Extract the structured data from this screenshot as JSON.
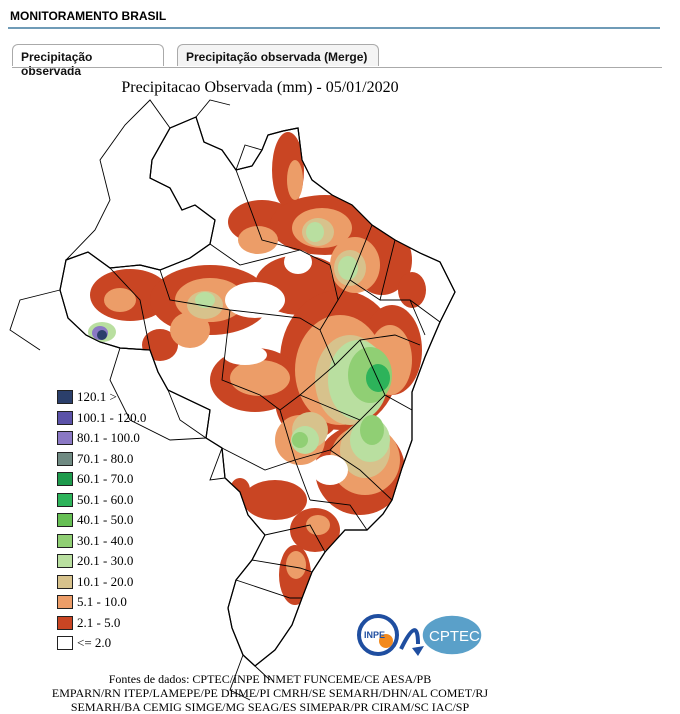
{
  "header": {
    "title": "MONITORAMENTO BRASIL"
  },
  "tabs": [
    {
      "label": "Precipitação observada",
      "active": true
    },
    {
      "label": "Precipitação observada (Merge)",
      "active": false
    }
  ],
  "map": {
    "title": "Precipitacao Observada (mm) - 05/01/2020",
    "legend": [
      {
        "label": "120.1 >",
        "color": "#2b3f6b"
      },
      {
        "label": "100.1 - 120.0",
        "color": "#5b52a8"
      },
      {
        "label": "80.1 - 100.0",
        "color": "#8a78c4"
      },
      {
        "label": "70.1 - 80.0",
        "color": "#6f8a82"
      },
      {
        "label": "60.1 - 70.0",
        "color": "#1e9a4c"
      },
      {
        "label": "50.1 - 60.0",
        "color": "#2db35a"
      },
      {
        "label": "40.1 - 50.0",
        "color": "#66bf54"
      },
      {
        "label": "30.1 - 40.0",
        "color": "#90cf74"
      },
      {
        "label": "20.1 - 30.0",
        "color": "#b9dfa0"
      },
      {
        "label": "10.1 - 20.0",
        "color": "#d7c28c"
      },
      {
        "label": "5.1 - 10.0",
        "color": "#ec9d68"
      },
      {
        "label": "2.1 - 5.0",
        "color": "#c94523"
      },
      {
        "label": "<= 2.0",
        "color": "#ffffff"
      }
    ]
  },
  "logo": {
    "inpe": "INPE",
    "cptec": "CPTEC"
  },
  "sources": {
    "line1": "Fontes de dados: CPTEC/INPE INMET FUNCEME/CE AESA/PB",
    "line2": "EMPARN/RN ITEP/LAMEPE/PE DHME/PI CMRH/SE SEMARH/DHN/AL COMET/RJ",
    "line3": "SEMARH/BA CEMIG SIMGE/MG SEAG/ES SIMEPAR/PR CIRAM/SC IAC/SP"
  }
}
